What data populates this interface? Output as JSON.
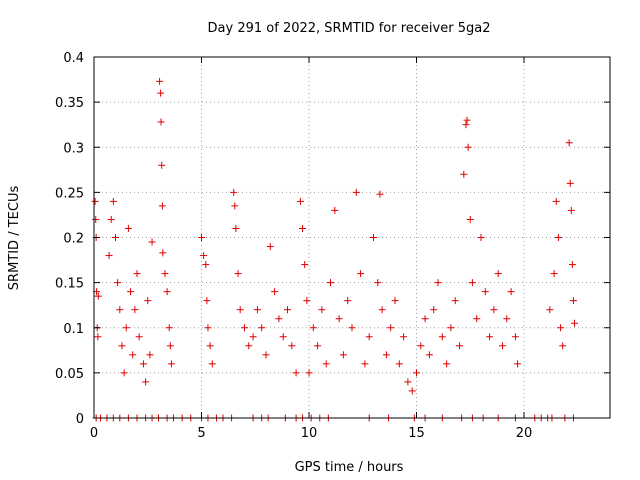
{
  "chart_data": {
    "type": "scatter",
    "title": "Day 291 of 2022, SRMTID for receiver 5ga2",
    "xlabel": "GPS time / hours",
    "ylabel": "SRMTID / TECUs",
    "xlim": [
      0,
      24
    ],
    "ylim": [
      0,
      0.4
    ],
    "x_ticks": [
      0,
      5,
      10,
      15,
      20
    ],
    "x_tick_labels": [
      "0",
      "5",
      "10",
      "15",
      "20"
    ],
    "y_ticks": [
      0,
      0.05,
      0.1,
      0.15,
      0.2,
      0.25,
      0.3,
      0.35,
      0.4
    ],
    "y_tick_labels": [
      "0",
      "0.05",
      "0.1",
      "0.15",
      "0.2",
      "0.25",
      "0.3",
      "0.35",
      "0.4"
    ],
    "grid": true,
    "marker": "+",
    "color": "#e00000",
    "series": [
      {
        "name": "SRMTID",
        "points": [
          [
            0.05,
            0.24
          ],
          [
            0.08,
            0.22
          ],
          [
            0.1,
            0.2
          ],
          [
            0.12,
            0.14
          ],
          [
            0.15,
            0.1
          ],
          [
            0.18,
            0.09
          ],
          [
            0.2,
            0.135
          ],
          [
            0.7,
            0.18
          ],
          [
            0.8,
            0.22
          ],
          [
            0.9,
            0.24
          ],
          [
            1.0,
            0.2
          ],
          [
            1.1,
            0.15
          ],
          [
            1.2,
            0.12
          ],
          [
            1.3,
            0.08
          ],
          [
            1.4,
            0.05
          ],
          [
            1.5,
            0.1
          ],
          [
            1.6,
            0.21
          ],
          [
            1.7,
            0.14
          ],
          [
            1.8,
            0.07
          ],
          [
            1.9,
            0.12
          ],
          [
            2.0,
            0.16
          ],
          [
            2.1,
            0.09
          ],
          [
            2.3,
            0.06
          ],
          [
            2.4,
            0.04
          ],
          [
            2.5,
            0.13
          ],
          [
            2.6,
            0.07
          ],
          [
            2.7,
            0.195
          ],
          [
            3.05,
            0.373
          ],
          [
            3.1,
            0.36
          ],
          [
            3.12,
            0.328
          ],
          [
            3.15,
            0.28
          ],
          [
            3.18,
            0.235
          ],
          [
            3.2,
            0.183
          ],
          [
            3.3,
            0.16
          ],
          [
            3.4,
            0.14
          ],
          [
            3.5,
            0.1
          ],
          [
            3.55,
            0.08
          ],
          [
            3.6,
            0.06
          ],
          [
            5.0,
            0.2
          ],
          [
            5.1,
            0.18
          ],
          [
            5.2,
            0.17
          ],
          [
            5.25,
            0.13
          ],
          [
            5.3,
            0.1
          ],
          [
            5.4,
            0.08
          ],
          [
            5.5,
            0.06
          ],
          [
            6.5,
            0.25
          ],
          [
            6.55,
            0.235
          ],
          [
            6.6,
            0.21
          ],
          [
            6.7,
            0.16
          ],
          [
            6.8,
            0.12
          ],
          [
            7.0,
            0.1
          ],
          [
            7.2,
            0.08
          ],
          [
            7.4,
            0.09
          ],
          [
            7.6,
            0.12
          ],
          [
            7.8,
            0.1
          ],
          [
            8.0,
            0.07
          ],
          [
            8.2,
            0.19
          ],
          [
            8.4,
            0.14
          ],
          [
            8.6,
            0.11
          ],
          [
            8.8,
            0.09
          ],
          [
            9.0,
            0.12
          ],
          [
            9.2,
            0.08
          ],
          [
            9.4,
            0.05
          ],
          [
            9.6,
            0.24
          ],
          [
            9.7,
            0.21
          ],
          [
            9.8,
            0.17
          ],
          [
            9.9,
            0.13
          ],
          [
            10.0,
            0.05
          ],
          [
            10.2,
            0.1
          ],
          [
            10.4,
            0.08
          ],
          [
            10.6,
            0.12
          ],
          [
            10.8,
            0.06
          ],
          [
            11.0,
            0.15
          ],
          [
            11.2,
            0.23
          ],
          [
            11.4,
            0.11
          ],
          [
            11.6,
            0.07
          ],
          [
            11.8,
            0.13
          ],
          [
            12.0,
            0.1
          ],
          [
            12.2,
            0.25
          ],
          [
            12.4,
            0.16
          ],
          [
            12.6,
            0.06
          ],
          [
            12.8,
            0.09
          ],
          [
            13.0,
            0.2
          ],
          [
            13.2,
            0.15
          ],
          [
            13.3,
            0.248
          ],
          [
            13.4,
            0.12
          ],
          [
            13.6,
            0.07
          ],
          [
            13.8,
            0.1
          ],
          [
            14.0,
            0.13
          ],
          [
            14.2,
            0.06
          ],
          [
            14.4,
            0.09
          ],
          [
            14.6,
            0.04
          ],
          [
            14.8,
            0.03
          ],
          [
            15.0,
            0.05
          ],
          [
            15.2,
            0.08
          ],
          [
            15.4,
            0.11
          ],
          [
            15.6,
            0.07
          ],
          [
            15.8,
            0.12
          ],
          [
            16.0,
            0.15
          ],
          [
            16.2,
            0.09
          ],
          [
            16.4,
            0.06
          ],
          [
            16.6,
            0.1
          ],
          [
            16.8,
            0.13
          ],
          [
            17.0,
            0.08
          ],
          [
            17.2,
            0.27
          ],
          [
            17.3,
            0.325
          ],
          [
            17.35,
            0.33
          ],
          [
            17.4,
            0.3
          ],
          [
            17.5,
            0.22
          ],
          [
            17.6,
            0.15
          ],
          [
            17.8,
            0.11
          ],
          [
            18.0,
            0.2
          ],
          [
            18.2,
            0.14
          ],
          [
            18.4,
            0.09
          ],
          [
            18.6,
            0.12
          ],
          [
            18.8,
            0.16
          ],
          [
            19.0,
            0.08
          ],
          [
            19.2,
            0.11
          ],
          [
            19.4,
            0.14
          ],
          [
            19.6,
            0.09
          ],
          [
            19.7,
            0.06
          ],
          [
            21.2,
            0.12
          ],
          [
            21.4,
            0.16
          ],
          [
            21.5,
            0.24
          ],
          [
            21.6,
            0.2
          ],
          [
            21.7,
            0.1
          ],
          [
            21.8,
            0.08
          ],
          [
            22.1,
            0.305
          ],
          [
            22.15,
            0.26
          ],
          [
            22.2,
            0.23
          ],
          [
            22.25,
            0.17
          ],
          [
            22.3,
            0.13
          ],
          [
            22.35,
            0.105
          ]
        ]
      }
    ],
    "zero_points_x": [
      0.1,
      0.3,
      0.6,
      0.9,
      1.2,
      1.6,
      2.0,
      2.4,
      2.7,
      3.0,
      3.4,
      3.7,
      4.1,
      4.5,
      5.0,
      5.3,
      5.7,
      6.0,
      6.4,
      7.4,
      7.8,
      8.1,
      8.9,
      9.4,
      9.7,
      10.1,
      10.5,
      10.9,
      12.8,
      13.7,
      14.9,
      15.4,
      16.2,
      17.1,
      17.6,
      18.1,
      18.8,
      19.6,
      20.5,
      20.8,
      21.1,
      21.3,
      21.9,
      22.3
    ]
  }
}
